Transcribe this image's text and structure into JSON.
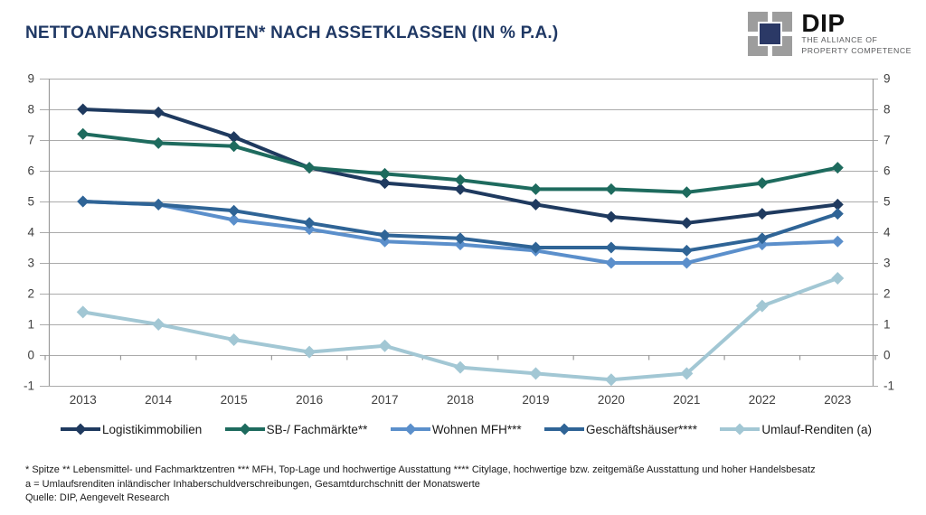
{
  "header": {
    "title": "NETTOANFANGSRENDITEN* NACH ASSETKLASSEN (IN % P.A.)"
  },
  "logo": {
    "name": "DIP",
    "tagline_line1": "THE ALLIANCE OF",
    "tagline_line2": "PROPERTY COMPETENCE",
    "mark_gray": "#9D9D9D",
    "mark_navy": "#2B3966"
  },
  "chart_data": {
    "type": "line",
    "title": "NETTOANFANGSRENDITEN* NACH ASSETKLASSEN (IN % P.A.)",
    "categories": [
      "2013",
      "2014",
      "2015",
      "2016",
      "2017",
      "2018",
      "2019",
      "2020",
      "2021",
      "2022",
      "2023"
    ],
    "series": [
      {
        "name": "Logistikimmobilien",
        "color": "#1F3A5F",
        "values": [
          8.0,
          7.9,
          7.1,
          6.1,
          5.6,
          5.4,
          4.9,
          4.5,
          4.3,
          4.6,
          4.9
        ]
      },
      {
        "name": "SB-/ Fachmärkte**",
        "color": "#1E6B5E",
        "values": [
          7.2,
          6.9,
          6.8,
          6.1,
          5.9,
          5.7,
          5.4,
          5.4,
          5.3,
          5.6,
          6.1
        ]
      },
      {
        "name": "Wohnen MFH***",
        "color": "#5B8FCB",
        "values": [
          5.0,
          4.9,
          4.4,
          4.1,
          3.7,
          3.6,
          3.4,
          3.0,
          3.0,
          3.6,
          3.7
        ]
      },
      {
        "name": "Geschäftshäuser****",
        "color": "#2F6496",
        "values": [
          5.0,
          4.9,
          4.7,
          4.3,
          3.9,
          3.8,
          3.5,
          3.5,
          3.4,
          3.8,
          4.6
        ]
      },
      {
        "name": "Umlauf-Renditen (a)",
        "color": "#A2C7D4",
        "values": [
          1.4,
          1.0,
          0.5,
          0.1,
          0.3,
          -0.4,
          -0.6,
          -0.8,
          -0.6,
          1.6,
          2.5
        ]
      }
    ],
    "ylim": [
      -1,
      9
    ],
    "yticks": [
      9,
      8,
      7,
      6,
      5,
      4,
      3,
      2,
      1,
      0,
      -1
    ],
    "ytick_labels_both_sides": true,
    "xlabel": "",
    "ylabel": "",
    "grid": true,
    "marker": "diamond",
    "legend_position": "bottom",
    "gridline_color": "#ABABAB",
    "axis_color": "#9A9A9A"
  },
  "footnotes": {
    "line1": "* Spitze ** Lebensmittel- und Fachmarktzentren *** MFH, Top-Lage und hochwertige Ausstattung **** Citylage, hochwertige bzw. zeitgemäße Ausstattung und hoher Handelsbesatz",
    "line2": "a = Umlaufsrenditen inländischer Inhaberschuldverschreibungen, Gesamtdurchschnitt der Monatswerte",
    "line3": "Quelle: DIP, Aengevelt Research"
  }
}
